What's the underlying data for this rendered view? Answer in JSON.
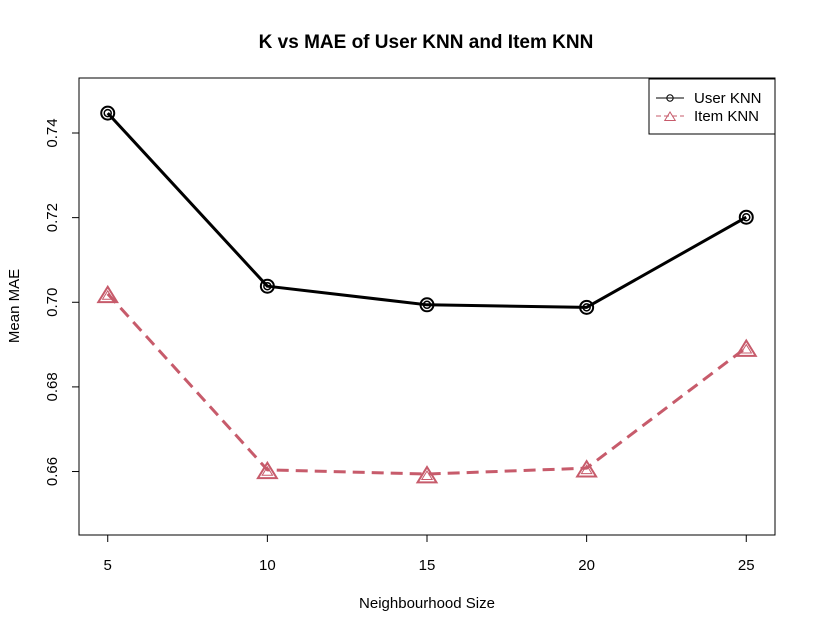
{
  "chart_data": {
    "type": "line",
    "title": "K vs MAE of User KNN and Item KNN",
    "xlabel": "Neighbourhood Size",
    "ylabel": "Mean MAE",
    "x": [
      5,
      10,
      15,
      20,
      25
    ],
    "xticks": [
      "5",
      "10",
      "15",
      "20",
      "25"
    ],
    "yticks": [
      "0.66",
      "0.68",
      "0.70",
      "0.72",
      "0.74"
    ],
    "ylim": [
      0.645,
      0.753
    ],
    "xlim": [
      4.1,
      25.9
    ],
    "grid": false,
    "legend_position": "top-right",
    "series": [
      {
        "name": "User KNN",
        "values": [
          0.7447,
          0.7038,
          0.6994,
          0.6988,
          0.7201
        ],
        "color": "#000000",
        "marker": "circle",
        "line_style": "solid"
      },
      {
        "name": "Item KNN",
        "values": [
          0.702,
          0.6604,
          0.6594,
          0.6608,
          0.6893
        ],
        "color": "#c75b6b",
        "marker": "triangle",
        "line_style": "dashed"
      }
    ]
  }
}
